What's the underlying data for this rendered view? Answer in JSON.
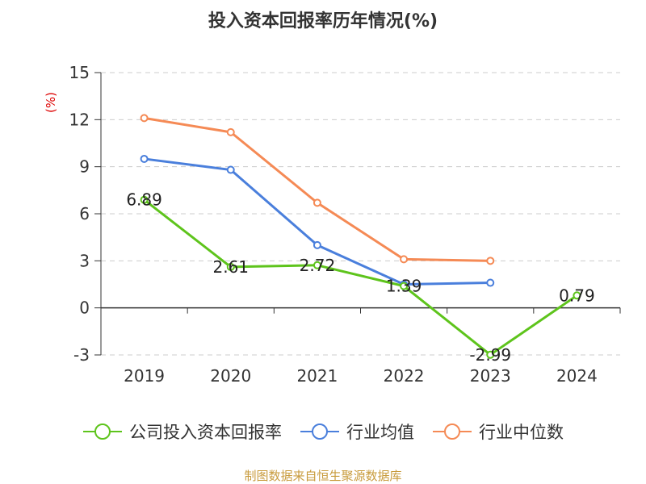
{
  "title": "投入资本回报率历年情况(%)",
  "source": "制图数据来自恒生聚源数据库",
  "chart_data": {
    "type": "line",
    "title": "投入资本回报率历年情况(%)",
    "ylabel": "(%)",
    "categories": [
      "2019",
      "2020",
      "2021",
      "2022",
      "2023",
      "2024"
    ],
    "ylim": [
      -3,
      15
    ],
    "yticks": [
      -3,
      0,
      3,
      6,
      9,
      12,
      15
    ],
    "grid": true,
    "legend_position": "bottom",
    "series": [
      {
        "name": "公司投入资本回报率",
        "color": "#5ec41c",
        "values": [
          6.89,
          2.61,
          2.72,
          1.39,
          -2.99,
          0.79
        ],
        "labels": [
          "6.89",
          "2.61",
          "2.72",
          "1.39",
          "-2.99",
          "0.79"
        ]
      },
      {
        "name": "行业均值",
        "color": "#4a7fdc",
        "values": [
          9.5,
          8.8,
          4.0,
          1.5,
          1.6,
          null
        ]
      },
      {
        "name": "行业中位数",
        "color": "#f58a55",
        "values": [
          12.1,
          11.2,
          6.7,
          3.1,
          3.0,
          null
        ]
      }
    ]
  }
}
